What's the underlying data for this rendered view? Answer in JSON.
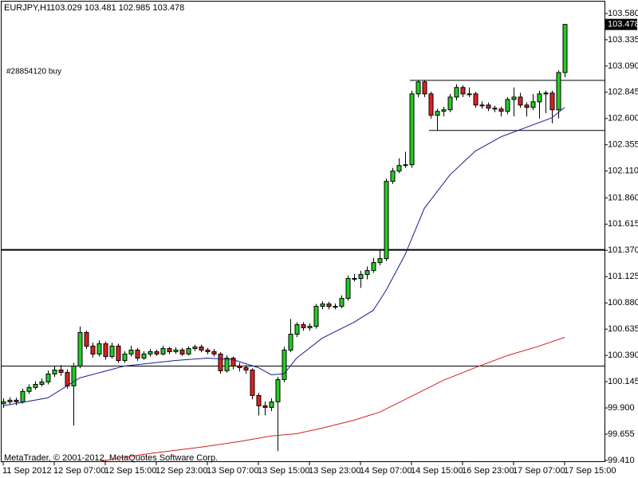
{
  "chart_data": {
    "type": "candlestick",
    "title": "EURJPY,H1",
    "header_values": [
      103.029,
      103.481,
      102.985,
      103.478
    ],
    "annotation": "#28854120 buy",
    "footer": "MetaTrader, © 2001-2012, MetaQuotes Software Corp.",
    "bull_color": "#22cc22",
    "bear_color": "#e02020",
    "grid": false,
    "ylim": [
      99.395,
      103.691
    ],
    "yticks": [
      {
        "value": 103.58,
        "label": "103.580"
      },
      103.335,
      {
        "value": 103.09,
        "label": "103.090"
      },
      102.845,
      {
        "value": 102.6,
        "label": "102.600"
      },
      102.355,
      {
        "value": 102.11,
        "label": "102.110"
      },
      {
        "value": 101.86,
        "label": "101.860"
      },
      101.615,
      {
        "value": 101.37,
        "label": "101.370"
      },
      101.125,
      {
        "value": 100.88,
        "label": "100.880"
      },
      100.635,
      {
        "value": 100.39,
        "label": "100.390"
      },
      100.145,
      {
        "value": 99.9,
        "label": "99.900"
      },
      99.655,
      {
        "value": 99.41,
        "label": "99.410"
      }
    ],
    "categories": [
      "11 Sep 2012",
      null,
      null,
      null,
      null,
      null,
      null,
      null,
      "12 Sep 07:00",
      null,
      null,
      null,
      null,
      null,
      null,
      null,
      "12 Sep 15:00",
      null,
      null,
      null,
      null,
      null,
      null,
      null,
      "12 Sep 23:00",
      null,
      null,
      null,
      null,
      null,
      null,
      null,
      "13 Sep 07:00",
      null,
      null,
      null,
      null,
      null,
      null,
      null,
      "13 Sep 15:00",
      null,
      null,
      null,
      null,
      null,
      null,
      null,
      "13 Sep 23:00",
      null,
      null,
      null,
      null,
      null,
      null,
      null,
      "14 Sep 07:00",
      null,
      null,
      null,
      null,
      null,
      null,
      null,
      "14 Sep 15:00",
      null,
      null,
      null,
      null,
      null,
      null,
      null,
      "16 Sep 23:00",
      null,
      null,
      null,
      null,
      null,
      null,
      null,
      "17 Sep 07:00",
      null,
      null,
      null,
      null,
      null,
      null,
      null,
      "17 Sep 15:00"
    ],
    "open": [
      99.94,
      99.957,
      99.972,
      99.957,
      100.054,
      100.091,
      100.12,
      100.143,
      100.217,
      100.254,
      100.232,
      100.106,
      100.291,
      100.603,
      100.477,
      100.403,
      100.499,
      100.38,
      100.477,
      100.343,
      100.403,
      100.44,
      100.365,
      100.403,
      100.425,
      100.403,
      100.454,
      100.425,
      100.44,
      100.403,
      100.454,
      100.469,
      100.44,
      100.425,
      100.403,
      100.247,
      100.365,
      100.291,
      100.276,
      100.254,
      100.016,
      99.92,
      99.905,
      99.957,
      100.165,
      100.44,
      100.588,
      100.677,
      100.648,
      100.662,
      100.848,
      100.87,
      100.848,
      100.848,
      100.922,
      101.108,
      101.108,
      101.145,
      101.182,
      101.256,
      101.293,
      102.014,
      102.11,
      102.162,
      102.169,
      102.83,
      102.942,
      102.83,
      102.63,
      102.667,
      102.682,
      102.8,
      102.89,
      102.83,
      102.83,
      102.726,
      102.726,
      102.697,
      102.689,
      102.667,
      102.778,
      102.8,
      102.726,
      102.704,
      102.756,
      102.83,
      102.838,
      102.682,
      103.029
    ],
    "high": [
      99.99,
      100.0,
      99.995,
      100.08,
      100.12,
      100.15,
      100.175,
      100.25,
      100.29,
      100.3,
      100.26,
      100.32,
      100.66,
      100.62,
      100.51,
      100.53,
      100.52,
      100.51,
      100.5,
      100.43,
      100.48,
      100.46,
      100.43,
      100.45,
      100.445,
      100.48,
      100.47,
      100.465,
      100.46,
      100.475,
      100.49,
      100.49,
      100.46,
      100.45,
      100.42,
      100.39,
      100.38,
      100.32,
      100.3,
      100.27,
      100.04,
      99.96,
      99.99,
      100.19,
      100.47,
      100.73,
      100.7,
      100.7,
      100.69,
      100.87,
      100.895,
      100.89,
      100.875,
      100.95,
      101.135,
      101.15,
      101.18,
      101.22,
      101.3,
      101.38,
      102.04,
      102.14,
      102.23,
      102.29,
      102.86,
      102.96,
      102.96,
      102.85,
      102.69,
      102.71,
      102.83,
      102.92,
      102.91,
      102.89,
      102.85,
      102.76,
      102.75,
      102.72,
      102.71,
      102.8,
      102.89,
      102.84,
      102.75,
      102.83,
      102.86,
      102.86,
      102.86,
      103.05,
      103.481
    ],
    "low": [
      99.9,
      99.93,
      99.925,
      99.94,
      100.03,
      100.07,
      100.1,
      100.12,
      100.19,
      100.2,
      100.08,
      99.734,
      100.27,
      100.45,
      100.37,
      100.38,
      100.35,
      100.36,
      100.32,
      100.32,
      100.38,
      100.34,
      100.35,
      100.38,
      100.385,
      100.39,
      100.4,
      100.405,
      100.385,
      100.39,
      100.43,
      100.42,
      100.4,
      100.38,
      100.22,
      100.23,
      100.26,
      100.24,
      100.22,
      99.98,
      99.831,
      99.831,
      99.87,
      99.497,
      100.14,
      100.42,
      100.56,
      100.62,
      100.62,
      100.64,
      100.82,
      100.82,
      100.82,
      100.83,
      100.9,
      101.08,
      101.02,
      101.1,
      101.16,
      101.23,
      101.27,
      101.99,
      102.09,
      102.14,
      102.14,
      102.8,
      102.8,
      102.6,
      102.49,
      102.62,
      102.66,
      102.77,
      102.8,
      102.8,
      102.7,
      102.69,
      102.67,
      102.66,
      102.62,
      102.64,
      102.62,
      102.7,
      102.62,
      102.68,
      102.6,
      102.65,
      102.556,
      102.6,
      102.985
    ],
    "close": [
      99.957,
      99.972,
      99.957,
      100.054,
      100.091,
      100.12,
      100.143,
      100.217,
      100.254,
      100.232,
      100.106,
      100.291,
      100.603,
      100.477,
      100.403,
      100.499,
      100.38,
      100.477,
      100.343,
      100.403,
      100.44,
      100.365,
      100.403,
      100.425,
      100.403,
      100.454,
      100.425,
      100.44,
      100.403,
      100.454,
      100.469,
      100.44,
      100.425,
      100.403,
      100.247,
      100.365,
      100.291,
      100.276,
      100.254,
      100.016,
      99.92,
      99.905,
      99.957,
      100.165,
      100.44,
      100.588,
      100.677,
      100.648,
      100.662,
      100.848,
      100.87,
      100.848,
      100.848,
      100.922,
      101.108,
      101.108,
      101.145,
      101.182,
      101.256,
      101.293,
      102.014,
      102.11,
      102.162,
      102.169,
      102.83,
      102.942,
      102.83,
      102.63,
      102.667,
      102.682,
      102.8,
      102.89,
      102.83,
      102.83,
      102.726,
      102.726,
      102.697,
      102.689,
      102.667,
      102.778,
      102.8,
      102.726,
      102.704,
      102.756,
      102.83,
      102.838,
      102.682,
      103.029,
      103.478
    ],
    "lines": [
      {
        "color": "#1a1a8c",
        "x": [
          0,
          7,
          12,
          19,
          27,
          32,
          36,
          40,
          42,
          44,
          46,
          50,
          55,
          58,
          60,
          63,
          66,
          70,
          74,
          78,
          82,
          86,
          88
        ],
        "values": [
          99.92,
          99.994,
          100.18,
          100.291,
          100.343,
          100.365,
          100.351,
          100.276,
          100.21,
          100.217,
          100.365,
          100.551,
          100.7,
          100.811,
          100.996,
          101.331,
          101.761,
          102.073,
          102.296,
          102.429,
          102.518,
          102.607,
          102.704
        ]
      },
      {
        "color": "#d42020",
        "x": [
          15,
          18,
          23,
          31,
          37,
          42,
          46,
          50,
          55,
          59,
          64,
          69,
          74,
          79,
          84,
          88
        ],
        "values": [
          99.4,
          99.43,
          99.475,
          99.534,
          99.586,
          99.638,
          99.66,
          99.712,
          99.786,
          99.861,
          100.009,
          100.158,
          100.276,
          100.388,
          100.477,
          100.558
        ]
      }
    ],
    "hlines": [
      {
        "value": 101.375,
        "color": "#000000",
        "start": 0
      },
      {
        "value": 100.291,
        "color": "#000000",
        "start": 0
      },
      {
        "value": 102.956,
        "color": "#000000",
        "start": 64
      },
      {
        "value": 102.489,
        "color": "#000000",
        "start": 67
      }
    ]
  }
}
